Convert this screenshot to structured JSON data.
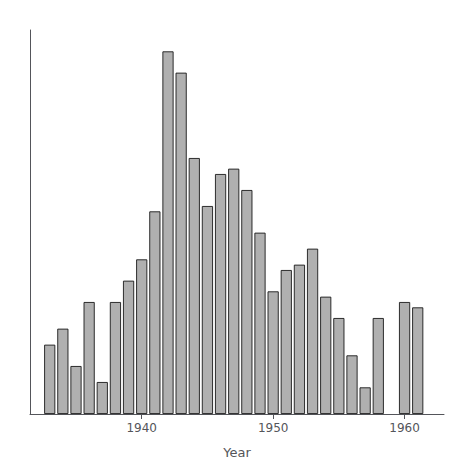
{
  "chart_data": {
    "type": "bar",
    "xlabel": "Year",
    "x": [
      1933,
      1934,
      1935,
      1936,
      1937,
      1938,
      1939,
      1940,
      1941,
      1942,
      1943,
      1944,
      1945,
      1946,
      1947,
      1948,
      1949,
      1950,
      1951,
      1952,
      1953,
      1954,
      1955,
      1956,
      1957,
      1958,
      1960,
      1961
    ],
    "values": [
      6.5,
      8.0,
      4.5,
      10.5,
      3.0,
      10.5,
      12.5,
      14.5,
      19.0,
      34.0,
      32.0,
      24.0,
      19.5,
      22.5,
      23.0,
      21.0,
      17.0,
      11.5,
      13.5,
      14.0,
      15.5,
      11.0,
      9.0,
      5.5,
      2.5,
      9.0,
      10.5,
      10.0
    ],
    "color": "#b0b0b0",
    "xlim": [
      1931.5,
      1963.0
    ],
    "xticks": [
      1940,
      1950,
      1960
    ],
    "ylim": [
      0,
      36
    ],
    "grid": false,
    "tick_labels": "x"
  }
}
